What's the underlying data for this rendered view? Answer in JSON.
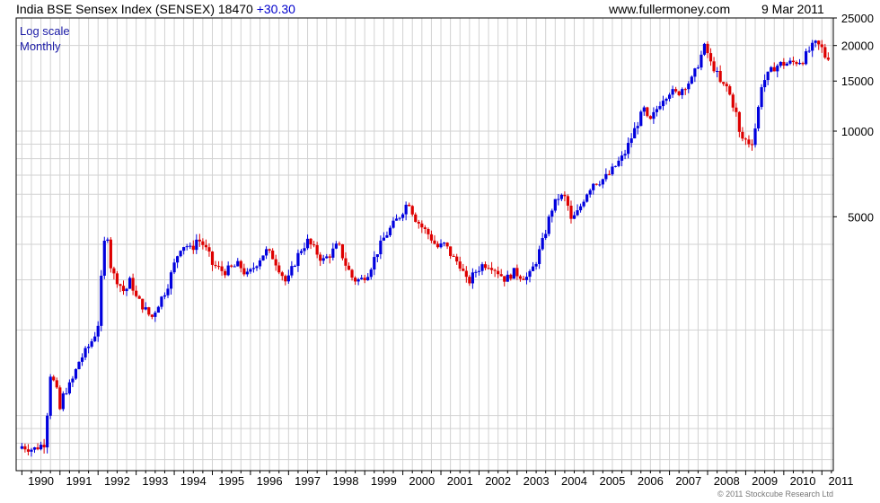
{
  "header": {
    "title": "India BSE Sensex Index (SENSEX) 18470",
    "change": "+30.30",
    "site": "www.fullermoney.com",
    "date": "9 Mar 2011"
  },
  "notes": {
    "scale": "Log scale",
    "period": "Monthly"
  },
  "copyright": "© 2011 Stockcube Research Ltd",
  "colors": {
    "up": "#0000dd",
    "down": "#dd0000",
    "grid": "#d2d2d2",
    "frame": "#000000"
  },
  "chart_data": {
    "type": "candlestick",
    "scale": "log",
    "grid": true,
    "ylim": [
      640,
      25000
    ],
    "xlim": [
      1989.85,
      2011.3
    ],
    "y_ticks": [
      25000,
      20000,
      15000,
      10000,
      5000
    ],
    "y_tick_labels": [
      "25000",
      "20000",
      "15000",
      "10000",
      "5000"
    ],
    "x_tick_labels": [
      "1990",
      "1991",
      "1992",
      "1993",
      "1994",
      "1995",
      "1996",
      "1997",
      "1998",
      "1999",
      "2000",
      "2001",
      "2002",
      "2003",
      "2004",
      "2005",
      "2006",
      "2007",
      "2008",
      "2009",
      "2010",
      "2011"
    ],
    "price_path": [
      [
        1990.0,
        780
      ],
      [
        1990.3,
        760
      ],
      [
        1990.6,
        800
      ],
      [
        1990.75,
        1400
      ],
      [
        1990.9,
        1250
      ],
      [
        1991.0,
        1050
      ],
      [
        1991.1,
        1200
      ],
      [
        1991.3,
        1300
      ],
      [
        1991.5,
        1550
      ],
      [
        1991.7,
        1700
      ],
      [
        1991.9,
        1900
      ],
      [
        1992.0,
        2100
      ],
      [
        1992.15,
        4000
      ],
      [
        1992.25,
        4300
      ],
      [
        1992.35,
        3200
      ],
      [
        1992.5,
        3000
      ],
      [
        1992.7,
        2700
      ],
      [
        1992.85,
        3000
      ],
      [
        1993.0,
        2600
      ],
      [
        1993.2,
        2400
      ],
      [
        1993.4,
        2200
      ],
      [
        1993.6,
        2500
      ],
      [
        1993.8,
        2800
      ],
      [
        1994.0,
        3400
      ],
      [
        1994.15,
        3900
      ],
      [
        1994.3,
        4000
      ],
      [
        1994.45,
        3800
      ],
      [
        1994.6,
        4200
      ],
      [
        1994.75,
        4000
      ],
      [
        1994.9,
        3700
      ],
      [
        1995.0,
        3400
      ],
      [
        1995.3,
        3200
      ],
      [
        1995.5,
        3300
      ],
      [
        1995.7,
        3400
      ],
      [
        1995.9,
        3100
      ],
      [
        1996.0,
        3200
      ],
      [
        1996.2,
        3500
      ],
      [
        1996.4,
        3800
      ],
      [
        1996.6,
        3600
      ],
      [
        1996.8,
        3200
      ],
      [
        1996.95,
        2900
      ],
      [
        1997.1,
        3300
      ],
      [
        1997.3,
        3800
      ],
      [
        1997.5,
        4100
      ],
      [
        1997.7,
        3800
      ],
      [
        1997.9,
        3500
      ],
      [
        1998.1,
        3700
      ],
      [
        1998.3,
        4000
      ],
      [
        1998.5,
        3400
      ],
      [
        1998.7,
        3000
      ],
      [
        1998.9,
        3000
      ],
      [
        1999.1,
        3200
      ],
      [
        1999.3,
        3700
      ],
      [
        1999.5,
        4200
      ],
      [
        1999.7,
        4600
      ],
      [
        1999.9,
        5000
      ],
      [
        2000.05,
        5400
      ],
      [
        2000.15,
        5700
      ],
      [
        2000.3,
        5000
      ],
      [
        2000.5,
        4600
      ],
      [
        2000.7,
        4300
      ],
      [
        2000.9,
        3900
      ],
      [
        2001.1,
        4000
      ],
      [
        2001.3,
        3600
      ],
      [
        2001.5,
        3400
      ],
      [
        2001.7,
        2900
      ],
      [
        2001.9,
        3200
      ],
      [
        2002.1,
        3400
      ],
      [
        2002.3,
        3400
      ],
      [
        2002.5,
        3200
      ],
      [
        2002.7,
        3000
      ],
      [
        2002.9,
        3200
      ],
      [
        2003.1,
        3100
      ],
      [
        2003.3,
        3050
      ],
      [
        2003.5,
        3500
      ],
      [
        2003.7,
        4200
      ],
      [
        2003.9,
        5300
      ],
      [
        2004.1,
        5900
      ],
      [
        2004.3,
        5800
      ],
      [
        2004.4,
        4800
      ],
      [
        2004.6,
        5200
      ],
      [
        2004.8,
        6000
      ],
      [
        2005.0,
        6600
      ],
      [
        2005.2,
        6700
      ],
      [
        2005.4,
        7000
      ],
      [
        2005.6,
        7600
      ],
      [
        2005.8,
        8200
      ],
      [
        2006.0,
        9500
      ],
      [
        2006.2,
        11000
      ],
      [
        2006.35,
        12000
      ],
      [
        2006.45,
        10500
      ],
      [
        2006.6,
        11500
      ],
      [
        2006.8,
        13000
      ],
      [
        2007.0,
        13800
      ],
      [
        2007.2,
        13500
      ],
      [
        2007.4,
        14500
      ],
      [
        2007.6,
        15200
      ],
      [
        2007.8,
        18000
      ],
      [
        2007.95,
        20200
      ],
      [
        2008.05,
        17500
      ],
      [
        2008.2,
        16500
      ],
      [
        2008.35,
        14500
      ],
      [
        2008.5,
        14300
      ],
      [
        2008.6,
        13200
      ],
      [
        2008.75,
        11500
      ],
      [
        2008.85,
        9500
      ],
      [
        2009.0,
        9300
      ],
      [
        2009.15,
        9000
      ],
      [
        2009.3,
        11000
      ],
      [
        2009.4,
        14500
      ],
      [
        2009.55,
        15500
      ],
      [
        2009.75,
        16800
      ],
      [
        2009.9,
        17200
      ],
      [
        2010.1,
        17300
      ],
      [
        2010.3,
        17500
      ],
      [
        2010.5,
        17800
      ],
      [
        2010.7,
        19500
      ],
      [
        2010.85,
        20300
      ],
      [
        2011.0,
        19500
      ],
      [
        2011.1,
        18100
      ],
      [
        2011.2,
        18470
      ]
    ]
  }
}
